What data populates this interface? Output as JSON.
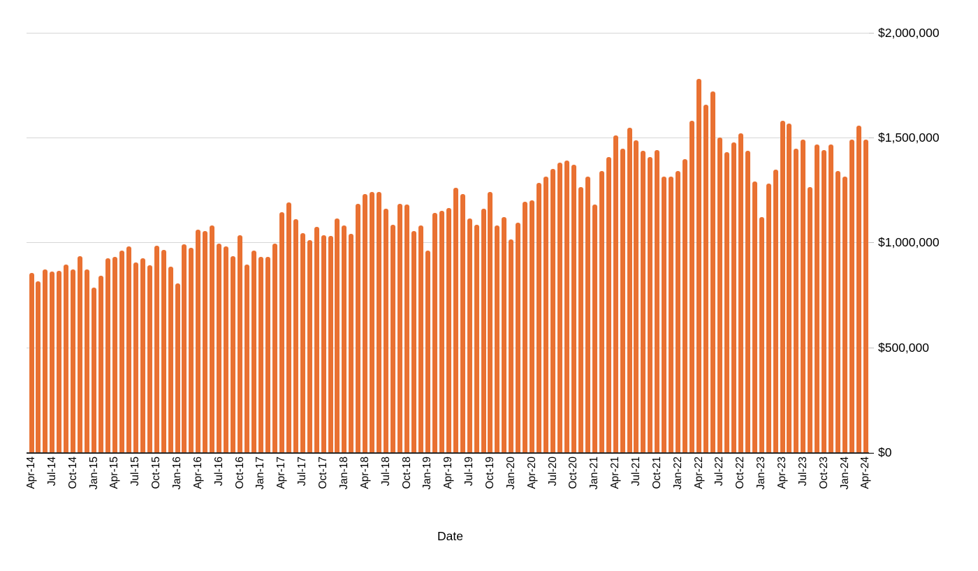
{
  "chart_data": {
    "type": "bar",
    "title": "",
    "xlabel": "Date",
    "ylabel": "",
    "ylim": [
      0,
      2000000
    ],
    "grid": true,
    "legend": "none",
    "y_axis_side": "right",
    "x_tick_rotation": 90,
    "bar_color": "#E97132",
    "gridline_color": "#D6D6D6",
    "axis_line_color": "#262626",
    "text_color": "#000000",
    "y_ticks": [
      {
        "value": 0,
        "label": "$0"
      },
      {
        "value": 500000,
        "label": "$500,000"
      },
      {
        "value": 1000000,
        "label": "$1,000,000"
      },
      {
        "value": 1500000,
        "label": "$1,500,000"
      },
      {
        "value": 2000000,
        "label": "$2,000,000"
      }
    ],
    "x_tick_labels": [
      "Apr-14",
      "Jul-14",
      "Oct-14",
      "Jan-15",
      "Apr-15",
      "Jul-15",
      "Oct-15",
      "Jan-16",
      "Apr-16",
      "Jul-16",
      "Oct-16",
      "Jan-17",
      "Apr-17",
      "Jul-17",
      "Oct-17",
      "Jan-18",
      "Apr-18",
      "Jul-18",
      "Oct-18",
      "Jan-19",
      "Apr-19",
      "Jul-19",
      "Oct-19",
      "Jan-20",
      "Apr-20",
      "Jul-20",
      "Oct-20",
      "Jan-21",
      "Apr-21",
      "Jul-21",
      "Oct-21",
      "Jan-22",
      "Apr-22",
      "Jul-22",
      "Oct-22",
      "Jan-23",
      "Apr-23",
      "Jul-23",
      "Oct-23",
      "Jan-24",
      "Apr-24"
    ],
    "categories": [
      "Apr-14",
      "May-14",
      "Jun-14",
      "Jul-14",
      "Aug-14",
      "Sep-14",
      "Oct-14",
      "Nov-14",
      "Dec-14",
      "Jan-15",
      "Feb-15",
      "Mar-15",
      "Apr-15",
      "May-15",
      "Jun-15",
      "Jul-15",
      "Aug-15",
      "Sep-15",
      "Oct-15",
      "Nov-15",
      "Dec-15",
      "Jan-16",
      "Feb-16",
      "Mar-16",
      "Apr-16",
      "May-16",
      "Jun-16",
      "Jul-16",
      "Aug-16",
      "Sep-16",
      "Oct-16",
      "Nov-16",
      "Dec-16",
      "Jan-17",
      "Feb-17",
      "Mar-17",
      "Apr-17",
      "May-17",
      "Jun-17",
      "Jul-17",
      "Aug-17",
      "Sep-17",
      "Oct-17",
      "Nov-17",
      "Dec-17",
      "Jan-18",
      "Feb-18",
      "Mar-18",
      "Apr-18",
      "May-18",
      "Jun-18",
      "Jul-18",
      "Aug-18",
      "Sep-18",
      "Oct-18",
      "Nov-18",
      "Dec-18",
      "Jan-19",
      "Feb-19",
      "Mar-19",
      "Apr-19",
      "May-19",
      "Jun-19",
      "Jul-19",
      "Aug-19",
      "Sep-19",
      "Oct-19",
      "Nov-19",
      "Dec-19",
      "Jan-20",
      "Feb-20",
      "Mar-20",
      "Apr-20",
      "May-20",
      "Jun-20",
      "Jul-20",
      "Aug-20",
      "Sep-20",
      "Oct-20",
      "Nov-20",
      "Dec-20",
      "Jan-21",
      "Feb-21",
      "Mar-21",
      "Apr-21",
      "May-21",
      "Jun-21",
      "Jul-21",
      "Aug-21",
      "Sep-21",
      "Oct-21",
      "Nov-21",
      "Dec-21",
      "Jan-22",
      "Feb-22",
      "Mar-22",
      "Apr-22",
      "May-22",
      "Jun-22",
      "Jul-22",
      "Aug-22",
      "Sep-22",
      "Oct-22",
      "Nov-22",
      "Dec-22",
      "Jan-23",
      "Feb-23",
      "Mar-23",
      "Apr-23",
      "May-23",
      "Jun-23",
      "Jul-23",
      "Aug-23",
      "Sep-23",
      "Oct-23",
      "Nov-23",
      "Dec-23",
      "Jan-24",
      "Feb-24",
      "Mar-24",
      "Apr-24"
    ],
    "values": [
      855000,
      815000,
      870000,
      860000,
      865000,
      895000,
      870000,
      935000,
      870000,
      785000,
      840000,
      925000,
      930000,
      960000,
      980000,
      905000,
      925000,
      890000,
      985000,
      965000,
      885000,
      805000,
      990000,
      975000,
      1060000,
      1055000,
      1080000,
      995000,
      980000,
      935000,
      1035000,
      895000,
      960000,
      930000,
      930000,
      995000,
      1145000,
      1190000,
      1110000,
      1045000,
      1010000,
      1075000,
      1035000,
      1030000,
      1115000,
      1080000,
      1040000,
      1185000,
      1230000,
      1240000,
      1240000,
      1160000,
      1085000,
      1185000,
      1180000,
      1055000,
      1080000,
      960000,
      1140000,
      1150000,
      1165000,
      1260000,
      1230000,
      1115000,
      1085000,
      1160000,
      1240000,
      1080000,
      1120000,
      1015000,
      1095000,
      1195000,
      1200000,
      1285000,
      1315000,
      1350000,
      1380000,
      1390000,
      1370000,
      1265000,
      1315000,
      1180000,
      1340000,
      1405000,
      1510000,
      1445000,
      1545000,
      1485000,
      1435000,
      1405000,
      1440000,
      1315000,
      1315000,
      1340000,
      1395000,
      1580000,
      1780000,
      1655000,
      1720000,
      1500000,
      1430000,
      1475000,
      1520000,
      1435000,
      1290000,
      1120000,
      1280000,
      1345000,
      1580000,
      1565000,
      1445000,
      1490000,
      1265000,
      1465000,
      1440000,
      1465000,
      1340000,
      1315000,
      1490000,
      1555000,
      1490000
    ]
  }
}
